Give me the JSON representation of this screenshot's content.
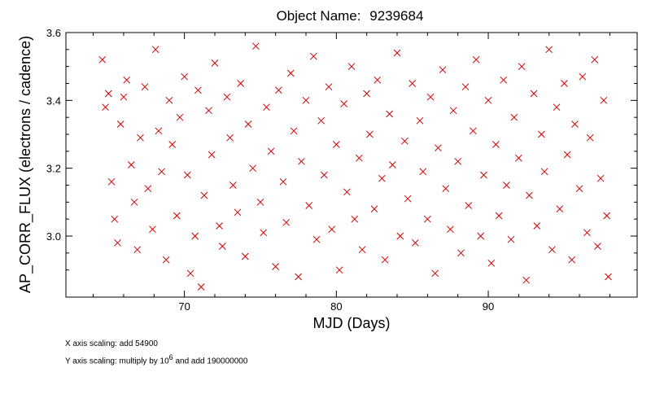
{
  "chart_data": {
    "type": "scatter",
    "title_prefix": "Object Name:",
    "title_value": "9239684",
    "xlabel": "MJD (Days)",
    "ylabel": "AP_CORR_FLUX (electrons / cadence)",
    "xlim": [
      62.2,
      99.8
    ],
    "ylim": [
      2.82,
      3.6
    ],
    "x_ticks": [
      70,
      80,
      90
    ],
    "x_tick_labels": [
      "70",
      "80",
      "90"
    ],
    "y_ticks": [
      3.0,
      3.2,
      3.4,
      3.6
    ],
    "y_tick_labels": [
      "3.0",
      "3.2",
      "3.4",
      "3.6"
    ],
    "grid": false,
    "legend": "none",
    "marker": "x",
    "marker_color": "#cc0000",
    "series": [
      {
        "x_range": [
          64.6,
          97.9
        ],
        "points": [
          [
            64.6,
            3.52
          ],
          [
            64.8,
            3.38
          ],
          [
            65.0,
            3.42
          ],
          [
            65.2,
            3.16
          ],
          [
            65.4,
            3.05
          ],
          [
            65.6,
            2.98
          ],
          [
            65.8,
            3.33
          ],
          [
            66.0,
            3.41
          ],
          [
            66.2,
            3.46
          ],
          [
            66.5,
            3.21
          ],
          [
            66.7,
            3.1
          ],
          [
            66.9,
            2.96
          ],
          [
            67.1,
            3.29
          ],
          [
            67.4,
            3.44
          ],
          [
            67.6,
            3.14
          ],
          [
            67.9,
            3.02
          ],
          [
            68.1,
            3.55
          ],
          [
            68.3,
            3.31
          ],
          [
            68.5,
            3.19
          ],
          [
            68.8,
            2.93
          ],
          [
            69.0,
            3.4
          ],
          [
            69.2,
            3.27
          ],
          [
            69.5,
            3.06
          ],
          [
            69.7,
            3.35
          ],
          [
            70.0,
            3.47
          ],
          [
            70.2,
            3.18
          ],
          [
            70.4,
            2.89
          ],
          [
            70.7,
            3.0
          ],
          [
            70.9,
            3.43
          ],
          [
            71.1,
            2.85
          ],
          [
            71.3,
            3.12
          ],
          [
            71.6,
            3.37
          ],
          [
            71.8,
            3.24
          ],
          [
            72.0,
            3.51
          ],
          [
            72.3,
            3.03
          ],
          [
            72.5,
            2.97
          ],
          [
            72.8,
            3.41
          ],
          [
            73.0,
            3.29
          ],
          [
            73.2,
            3.15
          ],
          [
            73.5,
            3.07
          ],
          [
            73.7,
            3.45
          ],
          [
            74.0,
            2.94
          ],
          [
            74.2,
            3.33
          ],
          [
            74.5,
            3.2
          ],
          [
            74.7,
            3.56
          ],
          [
            75.0,
            3.1
          ],
          [
            75.2,
            3.01
          ],
          [
            75.4,
            3.38
          ],
          [
            75.7,
            3.25
          ],
          [
            76.0,
            2.91
          ],
          [
            76.2,
            3.43
          ],
          [
            76.5,
            3.16
          ],
          [
            76.7,
            3.04
          ],
          [
            77.0,
            3.48
          ],
          [
            77.2,
            3.31
          ],
          [
            77.5,
            2.88
          ],
          [
            77.7,
            3.22
          ],
          [
            78.0,
            3.4
          ],
          [
            78.2,
            3.09
          ],
          [
            78.5,
            3.53
          ],
          [
            78.7,
            2.99
          ],
          [
            79.0,
            3.34
          ],
          [
            79.2,
            3.18
          ],
          [
            79.5,
            3.44
          ],
          [
            79.7,
            3.02
          ],
          [
            80.0,
            3.27
          ],
          [
            80.2,
            2.9
          ],
          [
            80.5,
            3.39
          ],
          [
            80.7,
            3.13
          ],
          [
            81.0,
            3.5
          ],
          [
            81.2,
            3.05
          ],
          [
            81.5,
            3.23
          ],
          [
            81.7,
            2.96
          ],
          [
            82.0,
            3.42
          ],
          [
            82.2,
            3.3
          ],
          [
            82.5,
            3.08
          ],
          [
            82.7,
            3.46
          ],
          [
            83.0,
            3.17
          ],
          [
            83.2,
            2.93
          ],
          [
            83.5,
            3.36
          ],
          [
            83.7,
            3.21
          ],
          [
            84.0,
            3.54
          ],
          [
            84.2,
            3.0
          ],
          [
            84.5,
            3.28
          ],
          [
            84.7,
            3.11
          ],
          [
            85.0,
            3.45
          ],
          [
            85.2,
            2.98
          ],
          [
            85.5,
            3.34
          ],
          [
            85.7,
            3.19
          ],
          [
            86.0,
            3.05
          ],
          [
            86.2,
            3.41
          ],
          [
            86.5,
            2.89
          ],
          [
            86.7,
            3.26
          ],
          [
            87.0,
            3.49
          ],
          [
            87.2,
            3.14
          ],
          [
            87.5,
            3.02
          ],
          [
            87.7,
            3.37
          ],
          [
            88.0,
            3.22
          ],
          [
            88.2,
            2.95
          ],
          [
            88.5,
            3.44
          ],
          [
            88.7,
            3.09
          ],
          [
            89.0,
            3.31
          ],
          [
            89.2,
            3.52
          ],
          [
            89.5,
            3.0
          ],
          [
            89.7,
            3.18
          ],
          [
            90.0,
            3.4
          ],
          [
            90.2,
            2.92
          ],
          [
            90.5,
            3.27
          ],
          [
            90.7,
            3.06
          ],
          [
            91.0,
            3.46
          ],
          [
            91.2,
            3.15
          ],
          [
            91.5,
            2.99
          ],
          [
            91.7,
            3.35
          ],
          [
            92.0,
            3.23
          ],
          [
            92.2,
            3.5
          ],
          [
            92.5,
            2.87
          ],
          [
            92.7,
            3.12
          ],
          [
            93.0,
            3.42
          ],
          [
            93.2,
            3.03
          ],
          [
            93.5,
            3.3
          ],
          [
            93.7,
            3.19
          ],
          [
            94.0,
            3.55
          ],
          [
            94.2,
            2.96
          ],
          [
            94.5,
            3.38
          ],
          [
            94.7,
            3.08
          ],
          [
            95.0,
            3.45
          ],
          [
            95.2,
            3.24
          ],
          [
            95.5,
            2.93
          ],
          [
            95.7,
            3.33
          ],
          [
            96.0,
            3.14
          ],
          [
            96.2,
            3.47
          ],
          [
            96.5,
            3.01
          ],
          [
            96.7,
            3.29
          ],
          [
            97.0,
            3.52
          ],
          [
            97.2,
            2.97
          ],
          [
            97.4,
            3.17
          ],
          [
            97.6,
            3.4
          ],
          [
            97.8,
            3.06
          ],
          [
            97.9,
            2.88
          ]
        ]
      }
    ]
  },
  "notes": {
    "x_scaling": "X axis scaling: add 54900",
    "y_scaling_prefix": "Y axis scaling: multiply by 10",
    "y_scaling_exp": "6",
    "y_scaling_suffix": " and add 190000000"
  }
}
